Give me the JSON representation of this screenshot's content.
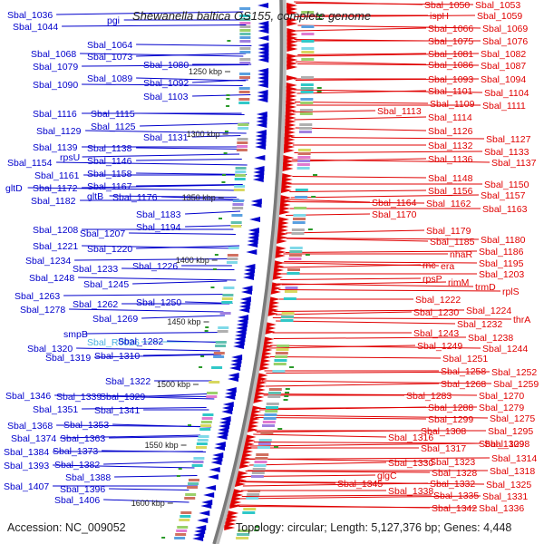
{
  "title": "Shewanella baltica OS155, complete genome",
  "accession": "Accession: NC_009052",
  "summary": "Topology: circular; Length: 5,127,376 bp; Genes: 4,448",
  "colors": {
    "forward": "#e00000",
    "reverse": "#0000cc",
    "rna": "#4ab0e0",
    "backbone": "#808080"
  },
  "kbp_marks": [
    "1250 kbp",
    "1300 kbp",
    "1350 kbp",
    "1400 kbp",
    "1450 kbp",
    "1500 kbp",
    "1550 kbp",
    "1600 kbp"
  ],
  "left_labels": [
    "Sbal_1036",
    "Sbal_1044",
    "pgi",
    "Sbal_1064",
    "Sbal_1068",
    "Sbal_1073",
    "Sbal_1079",
    "Sbal_1080",
    "Sbal_1090",
    "Sbal_1089",
    "Sbal_1092",
    "Sbal_1103",
    "Sbal_1116",
    "Sbal_1115",
    "Sbal_1129",
    "Sbal_1125",
    "Sbal_1131",
    "Sbal_1139",
    "Sbal_1138",
    "Sbal_1154",
    "rpsU",
    "Sbal_1146",
    "Sbal_1161",
    "Sbal_1158",
    "gltD",
    "Sbal_1172",
    "Sbal_1167",
    "Sbal_1182",
    "gltB",
    "Sbal_1176",
    "Sbal_1183",
    "Sbal_1194",
    "Sbal_1208",
    "Sbal_1207",
    "Sbal_1221",
    "Sbal_1220",
    "Sbal_1234",
    "Sbal_1226",
    "Sbal_1233",
    "Sbal_1248",
    "Sbal_1245",
    "Sbal_1263",
    "Sbal_1262",
    "Sbal_1250",
    "Sbal_1278",
    "Sbal_1269",
    "smpB",
    "Sbal_R0026",
    "Sbal_1282",
    "Sbal_1320",
    "Sbal_1319",
    "Sbal_1310",
    "Sbal_1322",
    "Sbal_1346",
    "Sbal_1339",
    "Sbal_1329",
    "Sbal_1351",
    "Sbal_1341",
    "Sbal_1368",
    "Sbal_1353",
    "Sbal_1374",
    "Sbal_1363",
    "Sbal_1384",
    "Sbal_1373",
    "Sbal_1393",
    "Sbal_1382",
    "Sbal_1388",
    "Sbal_1407",
    "Sbal_1396",
    "Sbal_1406"
  ],
  "right_labels": [
    "Sbal_1050",
    "Sbal_1053",
    "ispH",
    "Sbal_1059",
    "Sbal_1066",
    "Sbal_1069",
    "Sbal_1075",
    "Sbal_1076",
    "Sbal_1081",
    "Sbal_1082",
    "Sbal_1086",
    "Sbal_1087",
    "Sbal_1093",
    "Sbal_1094",
    "Sbal_1101",
    "Sbal_1104",
    "Sbal_1109",
    "Sbal_1111",
    "Sbal_1113",
    "Sbal_1114",
    "Sbal_1126",
    "Sbal_1127",
    "Sbal_1132",
    "Sbal_1133",
    "Sbal_1136",
    "Sbal_1137",
    "Sbal_1148",
    "Sbal_1150",
    "Sbal_1156",
    "Sbal_1157",
    "Sbal_1164",
    "Sbal_1162",
    "Sbal_1163",
    "Sbal_1170",
    "Sbal_1179",
    "Sbal_1185",
    "Sbal_1180",
    "nhaR",
    "Sbal_1186",
    "rnc",
    "era",
    "Sbal_1195",
    "Sbal_1203",
    "rpsP",
    "rimM",
    "trmD",
    "rplS",
    "Sbal_1222",
    "Sbal_1224",
    "Sbal_1230",
    "Sbal_1232",
    "thrA",
    "Sbal_1243",
    "Sbal_1238",
    "Sbal_1249",
    "Sbal_1244",
    "Sbal_1251",
    "Sbal_1258",
    "Sbal_1252",
    "Sbal_1268",
    "Sbal_1259",
    "Sbal_1270",
    "Sbal_1283",
    "Sbal_1279",
    "Sbal_1288",
    "Sbal_1275",
    "Sbal_1299",
    "Sbal_1295",
    "Sbal_1308",
    "Sbal_1298",
    "Sbal_1316",
    "Sbal_1309",
    "Sbal_1317",
    "Sbal_1314",
    "Sbal_1330",
    "Sbal_1323",
    "Sbal_1328",
    "Sbal_1318",
    "glgC",
    "Sbal_1332",
    "Sbal_1325",
    "Sbal_1345",
    "Sbal_1338",
    "Sbal_1335",
    "Sbal_1331",
    "Sbal_1342",
    "Sbal_1336"
  ]
}
